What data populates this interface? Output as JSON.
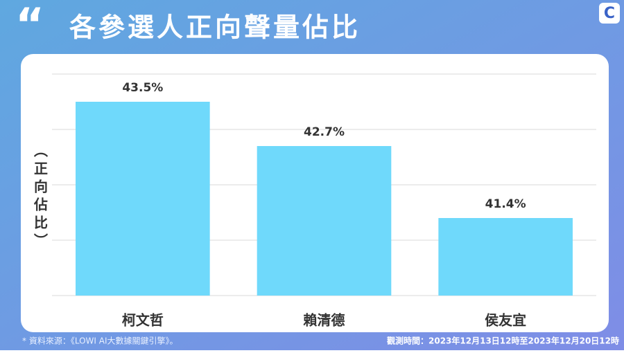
{
  "chart_data": {
    "type": "bar",
    "title": "各參選人正向聲量佔比",
    "y_label": "（正向佔比）",
    "categories": [
      "柯文哲",
      "賴清德",
      "侯友宜"
    ],
    "values": [
      43.5,
      42.7,
      41.4
    ],
    "value_labels": [
      "43.5%",
      "42.7%",
      "41.4%"
    ],
    "color": "#6fd9fb",
    "ylim": [
      40,
      44
    ],
    "yticks": [
      40,
      41,
      42,
      43,
      44
    ],
    "grid": true,
    "source": "* 資料來源：《LOWI AI大數據關鍵引擎》。",
    "period": "觀測時間：2023年12月13日12時至2023年12月20日12時"
  }
}
